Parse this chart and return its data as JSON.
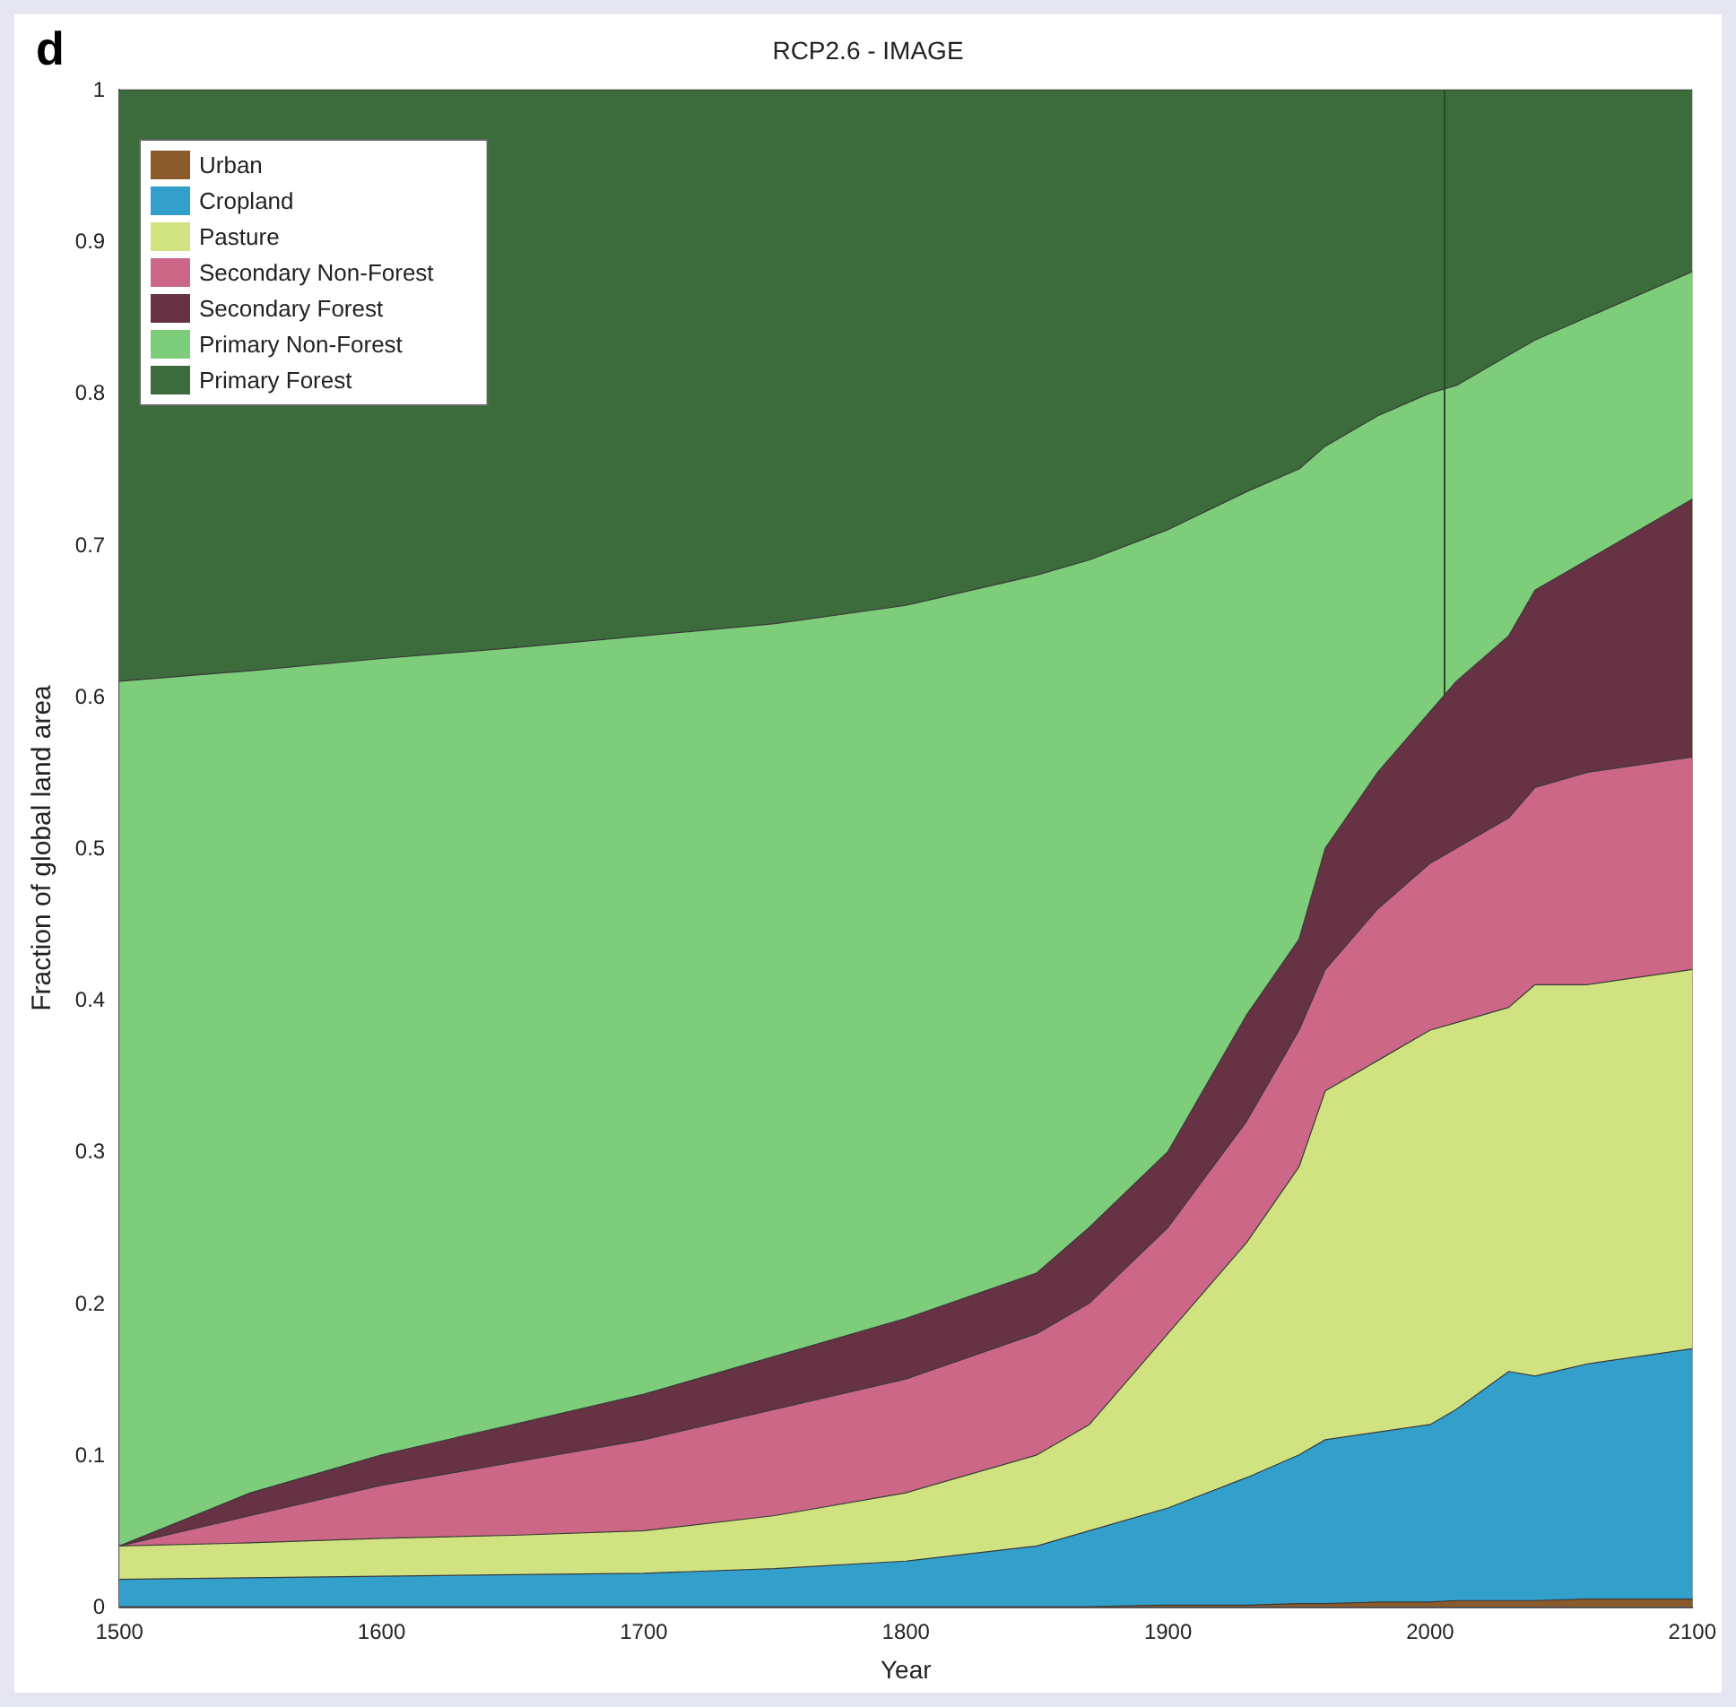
{
  "chart_data": {
    "type": "area",
    "stacked": true,
    "title": "RCP2.6 - IMAGE",
    "xlabel": "Year",
    "ylabel": "Fraction of global land area",
    "annotations": [
      "d"
    ],
    "x": [
      1500,
      1550,
      1600,
      1650,
      1700,
      1750,
      1800,
      1850,
      1870,
      1900,
      1930,
      1950,
      1960,
      1980,
      2000,
      2010,
      2030,
      2040,
      2060,
      2100
    ],
    "series": [
      {
        "name": "Urban",
        "color": "#8b5a2b",
        "values": [
          0,
          0,
          0,
          0,
          0,
          0,
          0,
          0,
          0,
          0.001,
          0.001,
          0.002,
          0.002,
          0.003,
          0.003,
          0.004,
          0.004,
          0.004,
          0.005,
          0.005
        ]
      },
      {
        "name": "Cropland",
        "color": "#33a0cc",
        "values": [
          0.018,
          0.019,
          0.02,
          0.021,
          0.022,
          0.025,
          0.03,
          0.04,
          0.05,
          0.064,
          0.084,
          0.098,
          0.108,
          0.112,
          0.117,
          0.126,
          0.151,
          0.148,
          0.155,
          0.165
        ]
      },
      {
        "name": "Pasture",
        "color": "#d1e381",
        "values": [
          0.022,
          0.023,
          0.025,
          0.026,
          0.028,
          0.035,
          0.045,
          0.06,
          0.07,
          0.115,
          0.155,
          0.19,
          0.23,
          0.245,
          0.26,
          0.255,
          0.24,
          0.258,
          0.25,
          0.25
        ]
      },
      {
        "name": "Secondary Non-Forest",
        "color": "#cd6787",
        "values": [
          0,
          0.018,
          0.035,
          0.048,
          0.06,
          0.07,
          0.075,
          0.08,
          0.08,
          0.07,
          0.08,
          0.09,
          0.08,
          0.1,
          0.11,
          0.115,
          0.125,
          0.13,
          0.14,
          0.14
        ]
      },
      {
        "name": "Secondary Forest",
        "color": "#673244",
        "values": [
          0,
          0.015,
          0.02,
          0.025,
          0.03,
          0.035,
          0.04,
          0.04,
          0.05,
          0.05,
          0.07,
          0.06,
          0.08,
          0.09,
          0.1,
          0.11,
          0.12,
          0.13,
          0.14,
          0.17
        ]
      },
      {
        "name": "Primary Non-Forest",
        "color": "#7dcd7a",
        "values": [
          0.57,
          0.542,
          0.525,
          0.512,
          0.5,
          0.483,
          0.47,
          0.46,
          0.44,
          0.41,
          0.345,
          0.31,
          0.265,
          0.235,
          0.21,
          0.195,
          0.185,
          0.165,
          0.16,
          0.15
        ]
      },
      {
        "name": "Primary Forest",
        "color": "#3c6b3c",
        "values": [
          0.39,
          0.383,
          0.375,
          0.368,
          0.36,
          0.352,
          0.34,
          0.32,
          0.31,
          0.29,
          0.265,
          0.25,
          0.235,
          0.215,
          0.2,
          0.195,
          0.175,
          0.165,
          0.15,
          0.12
        ]
      }
    ],
    "xlim": [
      1500,
      2100
    ],
    "xticks": [
      1500,
      1600,
      1700,
      1800,
      1900,
      2000,
      2100
    ],
    "ylim": [
      0,
      1
    ],
    "yticks": [
      0,
      0.1,
      0.2,
      0.3,
      0.4,
      0.5,
      0.6,
      0.7,
      0.8,
      0.9,
      1
    ],
    "ref_lines": [
      {
        "axis": "x",
        "value": 2005,
        "color": "#2a4a2a"
      }
    ],
    "legend": "top left",
    "grid": false,
    "marker": "none",
    "line_style": "solid"
  }
}
